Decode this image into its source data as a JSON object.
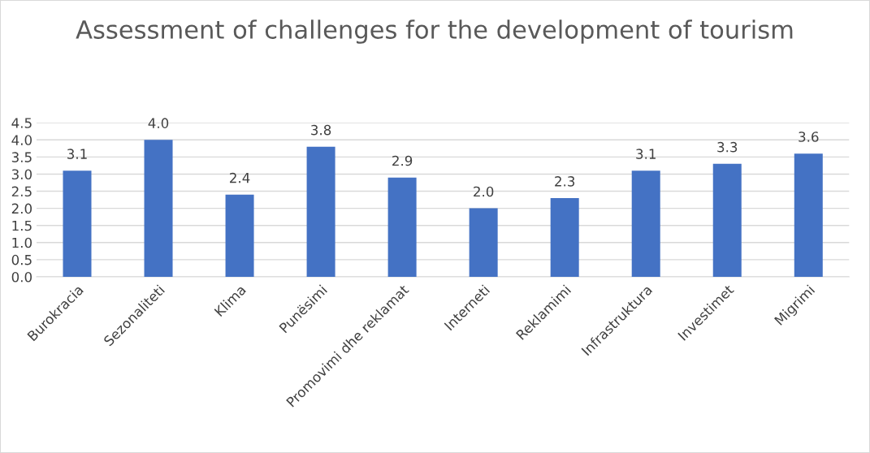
{
  "chart_data": {
    "type": "bar",
    "title": "Assessment of challenges for the development of tourism",
    "categories": [
      "Burokracia",
      "Sezonaliteti",
      "Klima",
      "Punësimi",
      "Promovimi dhe reklamat",
      "Interneti",
      "Reklamimi",
      "Infrastruktura",
      "Investimet",
      "Migrimi"
    ],
    "values": [
      3.1,
      4.0,
      2.4,
      3.8,
      2.9,
      2.0,
      2.3,
      3.1,
      3.3,
      3.6
    ],
    "value_labels": [
      "3.1",
      "4.0",
      "2.4",
      "3.8",
      "2.9",
      "2.0",
      "2.3",
      "3.1",
      "3.3",
      "3.6"
    ],
    "color": "#4472c4",
    "ylim": [
      0,
      4.5
    ],
    "yticks": [
      {
        "value": 0,
        "label": "0.0"
      },
      {
        "value": 0.5,
        "label": "0.5"
      },
      {
        "value": 1,
        "label": "1.0"
      },
      {
        "value": 1.5,
        "label": "1.5"
      },
      {
        "value": 2,
        "label": "2.0"
      },
      {
        "value": 2.5,
        "label": "2.5"
      },
      {
        "value": 3,
        "label": "3.0"
      },
      {
        "value": 3.5,
        "label": "3.5"
      },
      {
        "value": 4,
        "label": "4.0"
      },
      {
        "value": 4.5,
        "label": "4.5"
      }
    ],
    "grid": "y"
  }
}
